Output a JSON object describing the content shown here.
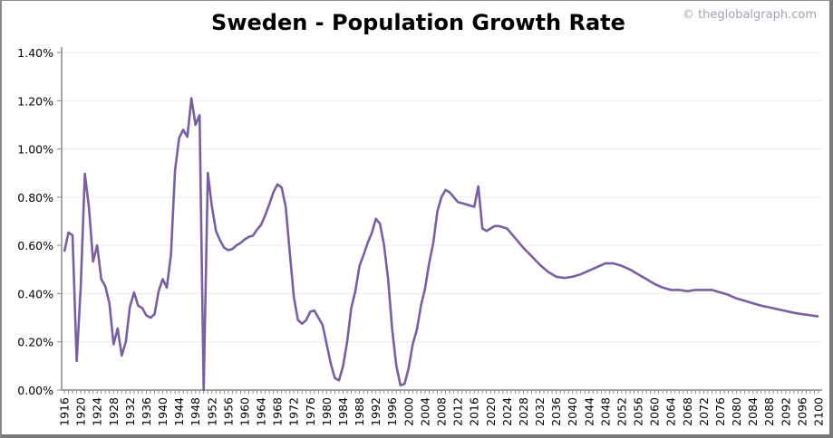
{
  "chart_data": {
    "type": "line",
    "title": "Sweden - Population Growth Rate",
    "credit": "© theglobalgraph.com",
    "xlabel": "",
    "ylabel": "",
    "xlim": [
      1916,
      2100
    ],
    "ylim": [
      0,
      1.4
    ],
    "grid": true,
    "line_color": "#7a5fa0",
    "x_ticks": [
      1916,
      1920,
      1924,
      1928,
      1932,
      1936,
      1940,
      1944,
      1948,
      1952,
      1956,
      1960,
      1964,
      1968,
      1972,
      1976,
      1980,
      1984,
      1988,
      1992,
      1996,
      2000,
      2004,
      2008,
      2012,
      2016,
      2020,
      2024,
      2028,
      2032,
      2036,
      2040,
      2044,
      2048,
      2052,
      2056,
      2060,
      2064,
      2068,
      2072,
      2076,
      2080,
      2084,
      2088,
      2092,
      2096,
      2100
    ],
    "y_ticks": [
      "0.00%",
      "0.20%",
      "0.40%",
      "0.60%",
      "0.80%",
      "1.00%",
      "1.20%",
      "1.40%"
    ],
    "series": [
      {
        "x": [
          1916,
          1917,
          1918,
          1919,
          1920,
          1921,
          1922,
          1923,
          1924,
          1925,
          1926,
          1927,
          1928,
          1929,
          1930,
          1931,
          1932,
          1933,
          1934,
          1935,
          1936,
          1937,
          1938,
          1939,
          1940,
          1941,
          1942,
          1943,
          1944,
          1945,
          1946,
          1947,
          1948,
          1949,
          1950,
          1951,
          1952,
          1953,
          1954,
          1955,
          1956,
          1957,
          1958,
          1959,
          1960,
          1961,
          1962,
          1963,
          1964,
          1965,
          1966,
          1967,
          1968,
          1969,
          1970,
          1971,
          1972,
          1973,
          1974,
          1975,
          1976,
          1977,
          1978,
          1979,
          1980,
          1981,
          1982,
          1983,
          1984,
          1985,
          1986,
          1987,
          1988,
          1989,
          1990,
          1991,
          1992,
          1993,
          1994,
          1995,
          1996,
          1997,
          1998,
          1999,
          2000,
          2001,
          2002,
          2003,
          2004,
          2005,
          2006,
          2007,
          2008,
          2009,
          2010,
          2011,
          2012,
          2013,
          2014,
          2015,
          2016,
          2017,
          2018,
          2019,
          2020,
          2021,
          2022,
          2024,
          2026,
          2028,
          2030,
          2032,
          2034,
          2036,
          2038,
          2040,
          2042,
          2044,
          2046,
          2048,
          2050,
          2052,
          2054,
          2056,
          2058,
          2060,
          2062,
          2064,
          2066,
          2068,
          2070,
          2072,
          2074,
          2076,
          2078,
          2080,
          2082,
          2084,
          2086,
          2088,
          2090,
          2092,
          2094,
          2096,
          2098,
          2100
        ],
        "y": [
          0.574,
          0.653,
          0.642,
          0.12,
          0.43,
          0.897,
          0.76,
          0.533,
          0.6,
          0.46,
          0.43,
          0.36,
          0.19,
          0.255,
          0.143,
          0.2,
          0.345,
          0.405,
          0.35,
          0.34,
          0.31,
          0.3,
          0.315,
          0.41,
          0.46,
          0.425,
          0.56,
          0.91,
          1.045,
          1.08,
          1.05,
          1.21,
          1.1,
          1.14,
          0.0,
          0.9,
          0.76,
          0.66,
          0.62,
          0.59,
          0.58,
          0.585,
          0.6,
          0.61,
          0.625,
          0.635,
          0.64,
          0.665,
          0.685,
          0.725,
          0.77,
          0.82,
          0.853,
          0.84,
          0.76,
          0.57,
          0.385,
          0.29,
          0.275,
          0.29,
          0.325,
          0.33,
          0.3,
          0.27,
          0.19,
          0.11,
          0.05,
          0.04,
          0.1,
          0.2,
          0.34,
          0.41,
          0.515,
          0.56,
          0.61,
          0.65,
          0.71,
          0.69,
          0.6,
          0.46,
          0.25,
          0.1,
          0.02,
          0.025,
          0.09,
          0.19,
          0.25,
          0.35,
          0.42,
          0.525,
          0.61,
          0.74,
          0.8,
          0.83,
          0.82,
          0.8,
          0.78,
          0.775,
          0.77,
          0.765,
          0.76,
          0.845,
          0.67,
          0.66,
          0.67,
          0.68,
          0.68,
          0.67,
          0.63,
          0.59,
          0.555,
          0.52,
          0.49,
          0.47,
          0.465,
          0.47,
          0.48,
          0.495,
          0.51,
          0.525,
          0.525,
          0.515,
          0.5,
          0.48,
          0.46,
          0.44,
          0.425,
          0.415,
          0.415,
          0.41,
          0.415,
          0.415,
          0.415,
          0.405,
          0.395,
          0.38,
          0.37,
          0.36,
          0.35,
          0.343,
          0.335,
          0.328,
          0.32,
          0.315,
          0.31,
          0.305
        ]
      }
    ]
  }
}
